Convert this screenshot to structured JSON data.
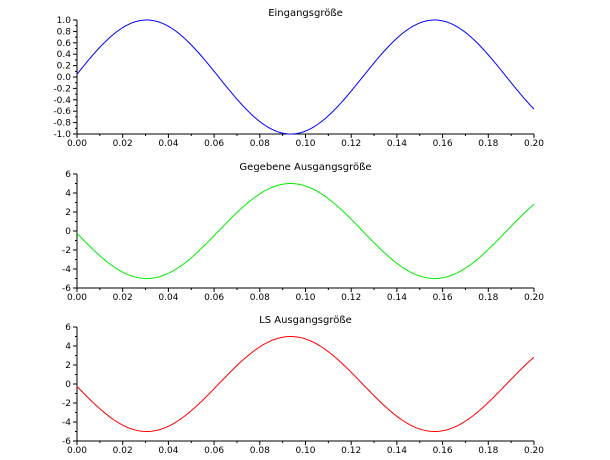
{
  "chart_data": [
    {
      "type": "line",
      "title": "Eingangsgröße",
      "xlim": [
        0,
        0.2
      ],
      "ylim": [
        -1,
        1
      ],
      "xticks": [
        "0.00",
        "0.02",
        "0.04",
        "0.06",
        "0.08",
        "0.10",
        "0.12",
        "0.14",
        "0.16",
        "0.18",
        "0.20"
      ],
      "yticks": [
        "1.0",
        "0.8",
        "0.6",
        "0.4",
        "0.2",
        "0.0",
        "-0.2",
        "-0.4",
        "-0.6",
        "-0.8",
        "-1.0"
      ],
      "grid": false,
      "series": [
        {
          "color": "#0000ff",
          "function": "sin",
          "amplitude": 1.0,
          "period": 0.126,
          "phase": 0.05,
          "x": [
            0,
            0.02,
            0.04,
            0.06,
            0.08,
            0.1,
            0.12,
            0.14,
            0.16,
            0.18,
            0.2
          ],
          "y": [
            0.05,
            0.87,
            0.91,
            0.14,
            -0.78,
            -0.96,
            -0.3,
            0.62,
            1.0,
            0.43,
            -0.53
          ]
        }
      ]
    },
    {
      "type": "line",
      "title": "Gegebene Ausgangsgröße",
      "xlim": [
        0,
        0.2
      ],
      "ylim": [
        -6,
        6
      ],
      "xticks": [
        "0.00",
        "0.02",
        "0.04",
        "0.06",
        "0.08",
        "0.10",
        "0.12",
        "0.14",
        "0.16",
        "0.18",
        "0.20"
      ],
      "yticks": [
        "6",
        "4",
        "2",
        "0",
        "-2",
        "-4",
        "-6"
      ],
      "grid": false,
      "series": [
        {
          "color": "#00ee00",
          "function": "sin",
          "amplitude": -5.0,
          "period": 0.126,
          "phase": 0.05,
          "x": [
            0,
            0.02,
            0.04,
            0.06,
            0.08,
            0.1,
            0.12,
            0.14,
            0.16,
            0.18,
            0.2
          ],
          "y": [
            -0.25,
            -4.35,
            -4.55,
            -0.7,
            3.9,
            4.8,
            1.5,
            -3.1,
            -5.0,
            -2.15,
            2.65
          ]
        }
      ]
    },
    {
      "type": "line",
      "title": "LS Ausgangsgröße",
      "xlim": [
        0,
        0.2
      ],
      "ylim": [
        -6,
        6
      ],
      "xticks": [
        "0.00",
        "0.02",
        "0.04",
        "0.06",
        "0.08",
        "0.10",
        "0.12",
        "0.14",
        "0.16",
        "0.18",
        "0.20"
      ],
      "yticks": [
        "6",
        "4",
        "2",
        "0",
        "-2",
        "-4",
        "-6"
      ],
      "grid": false,
      "series": [
        {
          "color": "#ff0000",
          "function": "sin",
          "amplitude": -5.0,
          "period": 0.126,
          "phase": 0.05,
          "x": [
            0,
            0.02,
            0.04,
            0.06,
            0.08,
            0.1,
            0.12,
            0.14,
            0.16,
            0.18,
            0.2
          ],
          "y": [
            -0.25,
            -4.35,
            -4.55,
            -0.7,
            3.9,
            4.8,
            1.5,
            -3.1,
            -5.0,
            -2.15,
            2.65
          ]
        }
      ]
    }
  ]
}
